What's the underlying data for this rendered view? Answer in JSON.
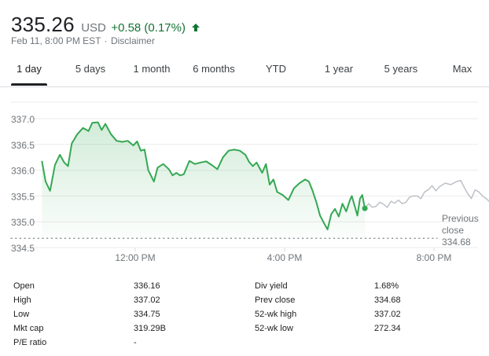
{
  "quote": {
    "price": "335.26",
    "currency": "USD",
    "change": "+0.58 (0.17%)",
    "change_color": "#137333",
    "timestamp": "Feb 11, 8:00 PM EST",
    "separator": "·",
    "disclaimer": "Disclaimer"
  },
  "tabs": [
    {
      "label": "1 day",
      "active": true
    },
    {
      "label": "5 days",
      "active": false
    },
    {
      "label": "1 month",
      "active": false
    },
    {
      "label": "6 months",
      "active": false
    },
    {
      "label": "YTD",
      "active": false
    },
    {
      "label": "1 year",
      "active": false
    },
    {
      "label": "5 years",
      "active": false
    },
    {
      "label": "Max",
      "active": false
    }
  ],
  "chart_data": {
    "type": "line",
    "yticks": [
      "337.0",
      "336.5",
      "336.0",
      "335.5",
      "335.0",
      "334.5"
    ],
    "ylim": [
      334.5,
      337.0
    ],
    "xticks": [
      {
        "label": "12:00 PM",
        "hour": 12
      },
      {
        "label": "4:00 PM",
        "hour": 16
      },
      {
        "label": "8:00 PM",
        "hour": 20
      }
    ],
    "xlim_hours": [
      9.5,
      20
    ],
    "regular_session_color": "#34a853",
    "after_hours_color": "#bdc1c6",
    "previous_close": {
      "label_line1": "Previous",
      "label_line2": "close",
      "value": "334.68",
      "y": 334.68
    },
    "series": [
      {
        "session": "regular",
        "points": [
          [
            9.5,
            336.18
          ],
          [
            9.6,
            335.78
          ],
          [
            9.72,
            335.6
          ],
          [
            9.85,
            336.1
          ],
          [
            9.98,
            336.3
          ],
          [
            10.1,
            336.15
          ],
          [
            10.2,
            336.08
          ],
          [
            10.3,
            336.52
          ],
          [
            10.45,
            336.7
          ],
          [
            10.6,
            336.82
          ],
          [
            10.75,
            336.76
          ],
          [
            10.85,
            336.92
          ],
          [
            11.0,
            336.93
          ],
          [
            11.1,
            336.78
          ],
          [
            11.2,
            336.9
          ],
          [
            11.35,
            336.7
          ],
          [
            11.5,
            336.57
          ],
          [
            11.65,
            336.55
          ],
          [
            11.8,
            336.57
          ],
          [
            11.95,
            336.48
          ],
          [
            12.05,
            336.56
          ],
          [
            12.15,
            336.38
          ],
          [
            12.25,
            336.4
          ],
          [
            12.35,
            336.0
          ],
          [
            12.5,
            335.78
          ],
          [
            12.6,
            336.05
          ],
          [
            12.75,
            336.12
          ],
          [
            12.9,
            336.02
          ],
          [
            13.0,
            335.9
          ],
          [
            13.1,
            335.95
          ],
          [
            13.2,
            335.9
          ],
          [
            13.3,
            335.92
          ],
          [
            13.45,
            336.18
          ],
          [
            13.6,
            336.12
          ],
          [
            13.75,
            336.15
          ],
          [
            13.9,
            336.17
          ],
          [
            14.05,
            336.1
          ],
          [
            14.2,
            336.02
          ],
          [
            14.35,
            336.25
          ],
          [
            14.5,
            336.38
          ],
          [
            14.65,
            336.4
          ],
          [
            14.8,
            336.38
          ],
          [
            14.95,
            336.3
          ],
          [
            15.05,
            336.16
          ],
          [
            15.15,
            336.08
          ],
          [
            15.25,
            336.15
          ],
          [
            15.4,
            335.95
          ],
          [
            15.5,
            336.12
          ],
          [
            15.6,
            335.72
          ],
          [
            15.7,
            335.82
          ],
          [
            15.8,
            335.58
          ],
          [
            15.95,
            335.52
          ],
          [
            16.1,
            335.42
          ],
          [
            16.25,
            335.65
          ],
          [
            16.4,
            335.75
          ],
          [
            16.55,
            335.82
          ],
          [
            16.65,
            335.78
          ],
          [
            16.75,
            335.6
          ],
          [
            16.85,
            335.38
          ],
          [
            16.95,
            335.12
          ],
          [
            17.05,
            334.98
          ],
          [
            17.15,
            334.85
          ],
          [
            17.25,
            335.15
          ],
          [
            17.35,
            335.25
          ],
          [
            17.45,
            335.1
          ],
          [
            17.55,
            335.35
          ],
          [
            17.65,
            335.2
          ],
          [
            17.75,
            335.42
          ],
          [
            17.8,
            335.5
          ],
          [
            17.9,
            335.25
          ],
          [
            17.95,
            335.12
          ],
          [
            18.02,
            335.45
          ],
          [
            18.08,
            335.52
          ],
          [
            18.15,
            335.26
          ]
        ]
      },
      {
        "session": "after_hours",
        "points": [
          [
            18.15,
            335.26
          ],
          [
            18.25,
            335.35
          ],
          [
            18.35,
            335.28
          ],
          [
            18.45,
            335.3
          ],
          [
            18.55,
            335.38
          ],
          [
            18.65,
            335.34
          ],
          [
            18.75,
            335.28
          ],
          [
            18.85,
            335.4
          ],
          [
            18.95,
            335.36
          ],
          [
            19.05,
            335.42
          ],
          [
            19.15,
            335.35
          ],
          [
            19.25,
            335.38
          ],
          [
            19.35,
            335.48
          ],
          [
            19.45,
            335.5
          ],
          [
            19.55,
            335.5
          ],
          [
            19.65,
            335.45
          ],
          [
            19.75,
            335.58
          ],
          [
            19.85,
            335.62
          ],
          [
            19.95,
            335.7
          ],
          [
            20.05,
            335.6
          ],
          [
            20.15,
            335.68
          ],
          [
            20.3,
            335.75
          ],
          [
            20.45,
            335.72
          ],
          [
            20.6,
            335.78
          ],
          [
            20.72,
            335.8
          ],
          [
            20.8,
            335.68
          ],
          [
            20.9,
            335.55
          ],
          [
            21.0,
            335.45
          ],
          [
            21.1,
            335.62
          ],
          [
            21.2,
            335.58
          ],
          [
            21.3,
            335.5
          ],
          [
            21.4,
            335.45
          ],
          [
            21.5,
            335.38
          ],
          [
            21.6,
            335.35
          ],
          [
            21.7,
            335.2
          ],
          [
            21.75,
            335.32
          ],
          [
            21.8,
            335.28
          ]
        ]
      }
    ],
    "current_point": {
      "hour": 18.15,
      "y": 335.26
    }
  },
  "stats": {
    "left": [
      {
        "label": "Open",
        "value": "336.16"
      },
      {
        "label": "High",
        "value": "337.02"
      },
      {
        "label": "Low",
        "value": "334.75"
      },
      {
        "label": "Mkt cap",
        "value": "319.29B"
      },
      {
        "label": "P/E ratio",
        "value": "-"
      }
    ],
    "right": [
      {
        "label": "Div yield",
        "value": "1.68%"
      },
      {
        "label": "Prev close",
        "value": "334.68"
      },
      {
        "label": "52-wk high",
        "value": "337.02"
      },
      {
        "label": "52-wk low",
        "value": "272.34"
      }
    ]
  }
}
